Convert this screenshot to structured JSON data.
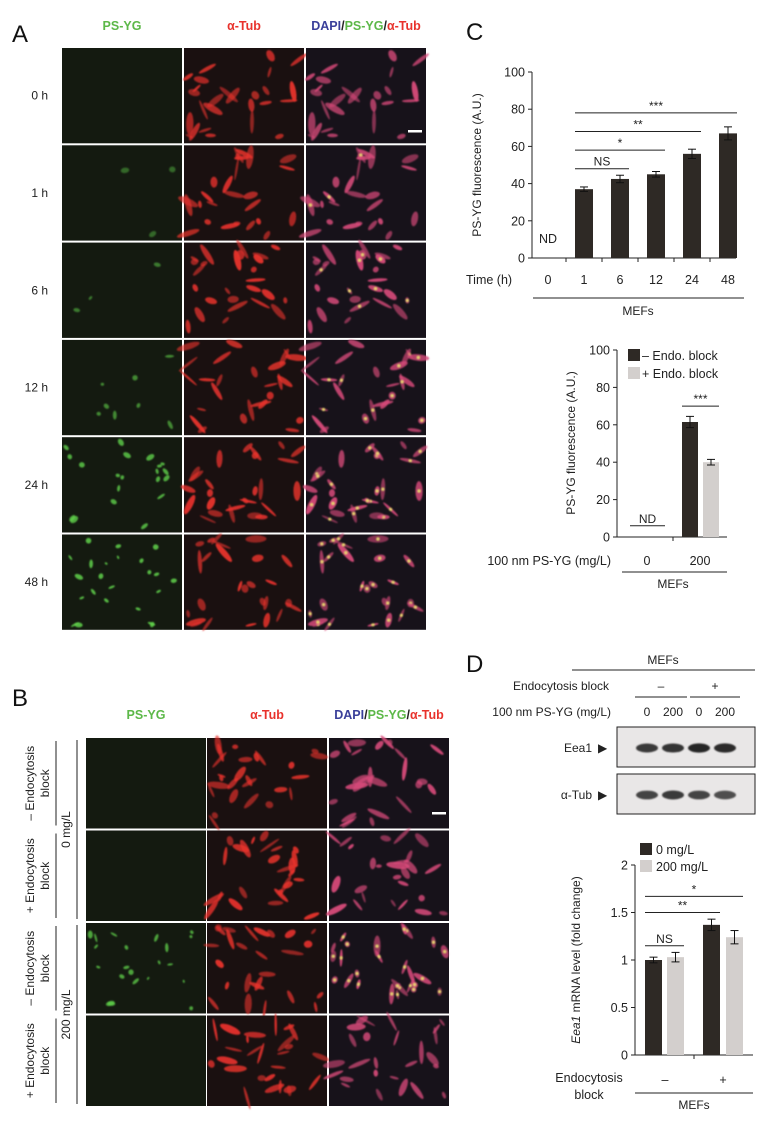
{
  "colors": {
    "green": "#5cb848",
    "red": "#e8322c",
    "blue": "#3a3f9a",
    "dark_bar": "#2e2925",
    "light_bar": "#d3cfcd"
  },
  "panels": {
    "A": {
      "letter": "A",
      "headers": [
        [
          {
            "t": "PS-YG",
            "c": "green"
          }
        ],
        [
          {
            "t": "α-Tub",
            "c": "red"
          }
        ],
        [
          {
            "t": "DAPI",
            "c": "blue"
          },
          {
            "t": "/",
            "c": "black"
          },
          {
            "t": "PS-YG",
            "c": "green"
          },
          {
            "t": "/",
            "c": "black"
          },
          {
            "t": "α-Tub",
            "c": "red"
          }
        ]
      ],
      "rows": [
        "0 h",
        "1 h",
        "6 h",
        "12 h",
        "24 h",
        "48 h"
      ],
      "green_level": [
        0,
        0.05,
        0.25,
        0.4,
        0.8,
        0.9
      ]
    },
    "B": {
      "letter": "B",
      "headers": [
        [
          {
            "t": "PS-YG",
            "c": "green"
          }
        ],
        [
          {
            "t": "α-Tub",
            "c": "red"
          }
        ],
        [
          {
            "t": "DAPI",
            "c": "blue"
          },
          {
            "t": "/",
            "c": "black"
          },
          {
            "t": "PS-YG",
            "c": "green"
          },
          {
            "t": "/",
            "c": "black"
          },
          {
            "t": "α-Tub",
            "c": "red"
          }
        ]
      ],
      "rows": [
        {
          "line1": "– Endocytosis",
          "line2": "block"
        },
        {
          "line1": "+ Endocytosis",
          "line2": "block"
        },
        {
          "line1": "– Endocytosis",
          "line2": "block"
        },
        {
          "line1": "+ Endocytosis",
          "line2": "block"
        }
      ],
      "groups": [
        "0 mg/L",
        "200 mg/L"
      ],
      "green_level": [
        0,
        0,
        0.7,
        0
      ]
    },
    "C": {
      "letter": "C"
    },
    "D": {
      "letter": "D",
      "blot": {
        "group_label": "MEFs",
        "row1_label": "Endocytosis block",
        "row1_values": [
          "–",
          "+"
        ],
        "row2_label": "100 nm PS-YG (mg/L)",
        "row2_values": [
          "0",
          "200",
          "0",
          "200"
        ],
        "bands": [
          {
            "label": "Eea1",
            "intensity": [
              0.85,
              0.88,
              0.95,
              0.92
            ]
          },
          {
            "label": "α-Tub",
            "intensity": [
              0.8,
              0.85,
              0.8,
              0.75
            ]
          }
        ],
        "arrow": "▶"
      }
    }
  },
  "chart_data": [
    {
      "id": "C-top",
      "type": "bar",
      "ylabel": "PS-YG fluorescence (A.U.)",
      "ylim": [
        0,
        100
      ],
      "yticks": [
        0,
        20,
        40,
        60,
        80,
        100
      ],
      "xlabel_prefix": "Time (h)",
      "categories": [
        "0",
        "1",
        "6",
        "12",
        "24",
        "48"
      ],
      "values": [
        null,
        37,
        42.5,
        45,
        56,
        67
      ],
      "errors": [
        null,
        1.2,
        2,
        1.5,
        2.5,
        3.5
      ],
      "annotations": [
        {
          "category": "0",
          "text": "ND"
        }
      ],
      "significance": [
        {
          "from": "1",
          "to": "6",
          "y": 48,
          "text": "NS"
        },
        {
          "from": "1",
          "to": "12",
          "y": 58,
          "text": "*"
        },
        {
          "from": "1",
          "to": "24",
          "y": 68,
          "text": "**"
        },
        {
          "from": "1",
          "to": "48",
          "y": 78,
          "text": "***"
        }
      ],
      "group_label": "MEFs"
    },
    {
      "id": "C-bottom",
      "type": "bar",
      "ylabel": "PS-YG fluorescence (A.U.)",
      "ylim": [
        0,
        100
      ],
      "yticks": [
        0,
        20,
        40,
        60,
        80,
        100
      ],
      "xlabel_prefix": "100 nm PS-YG (mg/L)",
      "categories": [
        "0",
        "200"
      ],
      "series": [
        {
          "name": "– Endo. block",
          "values": [
            null,
            61.5
          ],
          "errors": [
            null,
            3
          ]
        },
        {
          "name": "+ Endo. block",
          "values": [
            null,
            40
          ],
          "errors": [
            null,
            1.5
          ]
        }
      ],
      "annotations": [
        {
          "category": "0",
          "text": "ND",
          "y": 6
        }
      ],
      "significance": [
        {
          "category": "200",
          "y": 70,
          "text": "***"
        }
      ],
      "legend": "top-right",
      "group_label": "MEFs"
    },
    {
      "id": "D-bottom",
      "type": "bar",
      "ylabel_italic": "Eea1",
      "ylabel": " mRNA level (fold change)",
      "ylim": [
        0,
        2
      ],
      "yticks": [
        "0",
        "0.5",
        "1",
        "1.5",
        "2"
      ],
      "xlabel_prefix_lines": [
        "Endocytosis",
        "block"
      ],
      "categories": [
        "–",
        "+"
      ],
      "series": [
        {
          "name": "0 mg/L",
          "values": [
            1.0,
            1.37
          ],
          "errors": [
            0.03,
            0.06
          ]
        },
        {
          "name": "200 mg/L",
          "values": [
            1.03,
            1.24
          ],
          "errors": [
            0.05,
            0.07
          ]
        }
      ],
      "significance": [
        {
          "from": [
            0,
            0
          ],
          "to": [
            0,
            1
          ],
          "y": 1.15,
          "text": "NS"
        },
        {
          "from": [
            0,
            0
          ],
          "to": [
            1,
            0
          ],
          "y": 1.5,
          "text": "**"
        },
        {
          "from": [
            0,
            0
          ],
          "to": [
            1,
            1
          ],
          "y": 1.67,
          "text": "*"
        }
      ],
      "legend": "top-left",
      "group_label": "MEFs"
    }
  ]
}
